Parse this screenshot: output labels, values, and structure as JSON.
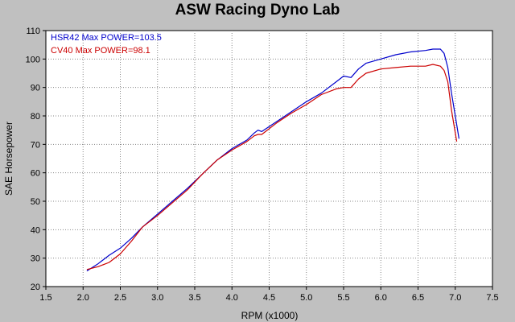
{
  "chart_data": {
    "type": "line",
    "title": "ASW Racing Dyno Lab",
    "xlabel": "RPM (x1000)",
    "ylabel": "SAE Horsepower",
    "xlim": [
      1.5,
      7.5
    ],
    "ylim": [
      20,
      110
    ],
    "x_ticks": [
      "1.5",
      "2.0",
      "2.5",
      "3.0",
      "3.5",
      "4.0",
      "4.5",
      "5.0",
      "5.5",
      "6.0",
      "6.5",
      "7.0",
      "7.5"
    ],
    "y_ticks": [
      "20",
      "30",
      "40",
      "50",
      "60",
      "70",
      "80",
      "90",
      "100",
      "110"
    ],
    "grid": true,
    "legend_position": "top-left",
    "series": [
      {
        "name": "HSR42",
        "label": "HSR42  Max POWER=103.5",
        "color": "#0000cc",
        "x": [
          2.05,
          2.2,
          2.35,
          2.5,
          2.65,
          2.8,
          3.0,
          3.2,
          3.4,
          3.6,
          3.8,
          4.0,
          4.2,
          4.3,
          4.35,
          4.4,
          4.6,
          4.8,
          5.0,
          5.2,
          5.4,
          5.5,
          5.6,
          5.7,
          5.8,
          6.0,
          6.2,
          6.4,
          6.6,
          6.7,
          6.8,
          6.85,
          6.9,
          6.95,
          7.0,
          7.05
        ],
        "y": [
          25.5,
          28,
          31,
          33.5,
          37,
          41,
          45.5,
          50,
          54.5,
          59.5,
          64.5,
          68.5,
          71.5,
          74,
          75,
          74.5,
          78,
          81.5,
          85,
          88,
          92,
          94,
          93.5,
          96.5,
          98.5,
          100,
          101.5,
          102.5,
          103,
          103.5,
          103.5,
          102,
          97,
          88,
          80,
          72
        ]
      },
      {
        "name": "CV40",
        "label": "CV40  Max POWER=98.1",
        "color": "#cc0000",
        "x": [
          2.05,
          2.2,
          2.35,
          2.5,
          2.65,
          2.8,
          3.0,
          3.2,
          3.4,
          3.6,
          3.8,
          4.0,
          4.2,
          4.3,
          4.35,
          4.4,
          4.6,
          4.8,
          5.0,
          5.2,
          5.4,
          5.5,
          5.6,
          5.7,
          5.8,
          6.0,
          6.2,
          6.4,
          6.6,
          6.7,
          6.8,
          6.85,
          6.9,
          6.95,
          7.0,
          7.02
        ],
        "y": [
          26,
          27,
          28.5,
          31.5,
          36,
          41,
          45,
          49.5,
          54,
          59.5,
          64.5,
          68,
          71,
          73,
          73.5,
          73.5,
          77.5,
          81,
          84,
          87.5,
          89.5,
          90,
          90,
          93,
          95,
          96.5,
          97,
          97.5,
          97.5,
          98.1,
          97.5,
          96,
          92,
          82,
          74,
          71
        ]
      }
    ]
  }
}
